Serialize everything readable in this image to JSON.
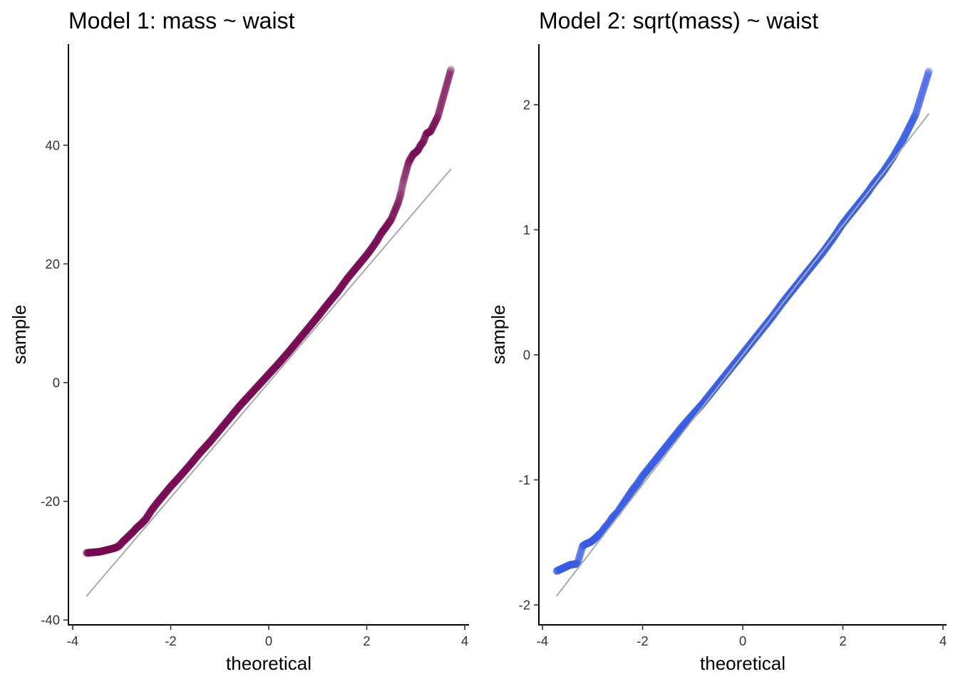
{
  "chart_data": [
    {
      "type": "scatter",
      "title": "Model 1: mass ~ waist",
      "xlabel": "theoretical",
      "ylabel": "sample",
      "xlim": [
        -4.0,
        4.0
      ],
      "ylim": [
        -40,
        55
      ],
      "xticks": [
        -4,
        -2,
        0,
        2,
        4
      ],
      "yticks": [
        -40,
        -20,
        0,
        20,
        40
      ],
      "xtick_labels": [
        "-4",
        "-2",
        "0",
        "2",
        "4"
      ],
      "ytick_labels": [
        "-40",
        "-20",
        "0",
        "20",
        "40"
      ],
      "point_color": "#7b0f55",
      "point_opacity": 0.15,
      "line_color": "#aaaaaa",
      "reference_line": {
        "x": [
          -3.72,
          3.72
        ],
        "y": [
          -36.0,
          36.0
        ]
      },
      "series": [
        {
          "x": [
            -3.72,
            -3.45,
            -3.3,
            -3.2,
            -3.12,
            -3.05,
            -3.0,
            -2.95,
            -2.9,
            -2.85,
            -2.8,
            -2.75,
            -2.7,
            -2.6,
            -2.5,
            -2.4,
            -2.3,
            -2.2,
            -2.1,
            -2.0,
            -1.8,
            -1.6,
            -1.4,
            -1.2,
            -1.0,
            -0.8,
            -0.6,
            -0.4,
            -0.2,
            0.0,
            0.2,
            0.4,
            0.6,
            0.8,
            1.0,
            1.2,
            1.4,
            1.6,
            1.7,
            1.8,
            1.9,
            2.0,
            2.1,
            2.2,
            2.3,
            2.4,
            2.5,
            2.55,
            2.6,
            2.65,
            2.7,
            2.75,
            2.8,
            2.85,
            2.9,
            2.95,
            3.0,
            3.05,
            3.1,
            3.15,
            3.22,
            3.3,
            3.45,
            3.72
          ],
          "y": [
            -28.7,
            -28.5,
            -28.2,
            -28.0,
            -27.8,
            -27.5,
            -27.0,
            -26.6,
            -26.2,
            -25.8,
            -25.4,
            -25.0,
            -24.5,
            -23.8,
            -22.9,
            -21.6,
            -20.5,
            -19.5,
            -18.5,
            -17.5,
            -15.7,
            -13.8,
            -11.8,
            -10.0,
            -8.0,
            -6.0,
            -4.0,
            -2.2,
            -0.4,
            1.4,
            3.2,
            5.1,
            7.1,
            9.1,
            11.1,
            13.2,
            15.2,
            17.5,
            18.5,
            19.5,
            20.5,
            21.5,
            22.6,
            23.8,
            25.2,
            26.3,
            27.5,
            28.5,
            29.5,
            30.5,
            32.0,
            34.0,
            35.5,
            37.0,
            37.8,
            38.5,
            38.8,
            39.2,
            40.0,
            40.5,
            42.0,
            42.3,
            44.8,
            52.8
          ]
        }
      ]
    },
    {
      "type": "scatter",
      "title": "Model 2: sqrt(mass) ~ waist",
      "xlabel": "theoretical",
      "ylabel": "sample",
      "xlim": [
        -4.0,
        4.0
      ],
      "ylim": [
        -2.1,
        2.45
      ],
      "xticks": [
        -4,
        -2,
        0,
        2,
        4
      ],
      "yticks": [
        -2,
        -1,
        0,
        1,
        2
      ],
      "xtick_labels": [
        "-4",
        "-2",
        "0",
        "2",
        "4"
      ],
      "ytick_labels": [
        "-2",
        "-1",
        "0",
        "1",
        "2"
      ],
      "point_color": "#3d5fe6",
      "point_opacity": 0.15,
      "line_color": "#aaaaaa",
      "reference_line": {
        "x": [
          -3.72,
          3.72
        ],
        "y": [
          -1.93,
          1.93
        ]
      },
      "series": [
        {
          "x": [
            -3.72,
            -3.45,
            -3.3,
            -3.2,
            -3.12,
            -3.05,
            -2.98,
            -2.9,
            -2.82,
            -2.75,
            -2.68,
            -2.6,
            -2.5,
            -2.4,
            -2.3,
            -2.2,
            -2.1,
            -2.0,
            -1.8,
            -1.6,
            -1.4,
            -1.2,
            -1.0,
            -0.8,
            -0.6,
            -0.4,
            -0.2,
            0.0,
            0.2,
            0.4,
            0.6,
            0.8,
            1.0,
            1.2,
            1.4,
            1.6,
            1.8,
            2.0,
            2.2,
            2.4,
            2.5,
            2.6,
            2.7,
            2.8,
            2.9,
            3.0,
            3.1,
            3.2,
            3.3,
            3.45,
            3.72
          ],
          "y": [
            -1.73,
            -1.68,
            -1.67,
            -1.53,
            -1.51,
            -1.5,
            -1.48,
            -1.45,
            -1.42,
            -1.38,
            -1.35,
            -1.3,
            -1.26,
            -1.2,
            -1.14,
            -1.08,
            -1.03,
            -0.97,
            -0.87,
            -0.77,
            -0.67,
            -0.57,
            -0.48,
            -0.39,
            -0.29,
            -0.19,
            -0.09,
            0.01,
            0.11,
            0.21,
            0.31,
            0.42,
            0.52,
            0.62,
            0.72,
            0.82,
            0.93,
            1.05,
            1.15,
            1.25,
            1.3,
            1.36,
            1.41,
            1.46,
            1.52,
            1.58,
            1.65,
            1.72,
            1.8,
            1.92,
            2.27
          ]
        }
      ]
    }
  ]
}
